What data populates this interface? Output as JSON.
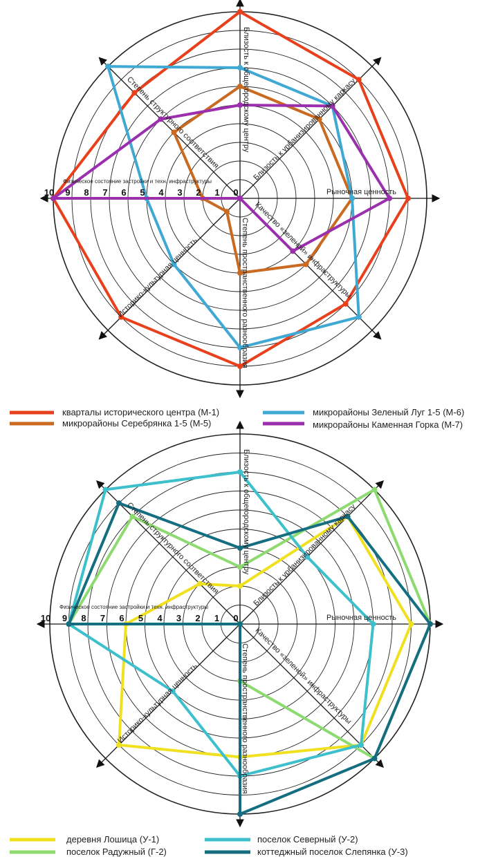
{
  "chart_data": [
    {
      "type": "radar",
      "axes": [
        "Близость к общегородскому центру",
        "Близость к урбанизированному каркасу",
        "Рыночная ценность",
        "Качество «зеленой» инфраструктуры",
        "Степень пространственного разнообразия",
        "Историко-культурная ценность",
        "Физическое состояние застройки и техн. инфраструктуры",
        "Степень структурного соответствия"
      ],
      "scale_labels": [
        "0",
        "1",
        "2",
        "3",
        "4",
        "5",
        "6",
        "7",
        "8",
        "9",
        "10"
      ],
      "rmax": 10,
      "series": [
        {
          "name": "кварталы исторического центра (М-1)",
          "color": "#e8401c",
          "values": [
            10,
            9,
            9,
            8,
            9,
            9,
            10,
            8
          ]
        },
        {
          "name": "микрорайоны Серебрянка 1-5 (М-5)",
          "color": "#c96a20",
          "values": [
            6,
            6,
            6,
            5,
            4,
            1,
            2,
            5
          ]
        },
        {
          "name": "микрорайоны Зеленый Луг 1-5 (М-6)",
          "color": "#3fa9d4",
          "values": [
            7,
            7,
            6,
            9,
            8,
            5,
            5,
            10
          ]
        },
        {
          "name": "микрорайоны Каменная Горка (М-7)",
          "color": "#9b2fae",
          "values": [
            5,
            7,
            8,
            4,
            0,
            0,
            10,
            6
          ]
        }
      ]
    },
    {
      "type": "radar",
      "axes": [
        "Близость к общегородскому центру",
        "Близость к урбанизированному каркасу",
        "Рыночная ценность",
        "Качество «зеленой» инфраструктуры",
        "Степень пространственного разнообразия",
        "Историко-культурная ценность",
        "Физическое состояние застройки и техн. инфраструктуры",
        "Степень структурного соответствия"
      ],
      "scale_labels": [
        "0",
        "1",
        "2",
        "3",
        "4",
        "5",
        "6",
        "7",
        "8",
        "9",
        "10"
      ],
      "rmax": 10,
      "series": [
        {
          "name": "деревня Лошица (У-1)",
          "color": "#f0e020",
          "values": [
            2,
            8,
            9,
            9,
            7,
            9,
            6,
            3
          ]
        },
        {
          "name": "поселок Радужный (Г-2)",
          "color": "#8ddb70",
          "values": [
            3,
            10,
            10,
            10,
            3,
            0,
            9,
            8
          ]
        },
        {
          "name": "поселок Северный (У-2)",
          "color": "#3dc0cc",
          "values": [
            8,
            5,
            7,
            9,
            8,
            5,
            9,
            10
          ]
        },
        {
          "name": "коттеджный поселок Слепянка (У-3)",
          "color": "#146e80",
          "values": [
            4,
            8,
            10,
            10,
            10,
            0,
            9,
            9
          ]
        }
      ]
    }
  ]
}
